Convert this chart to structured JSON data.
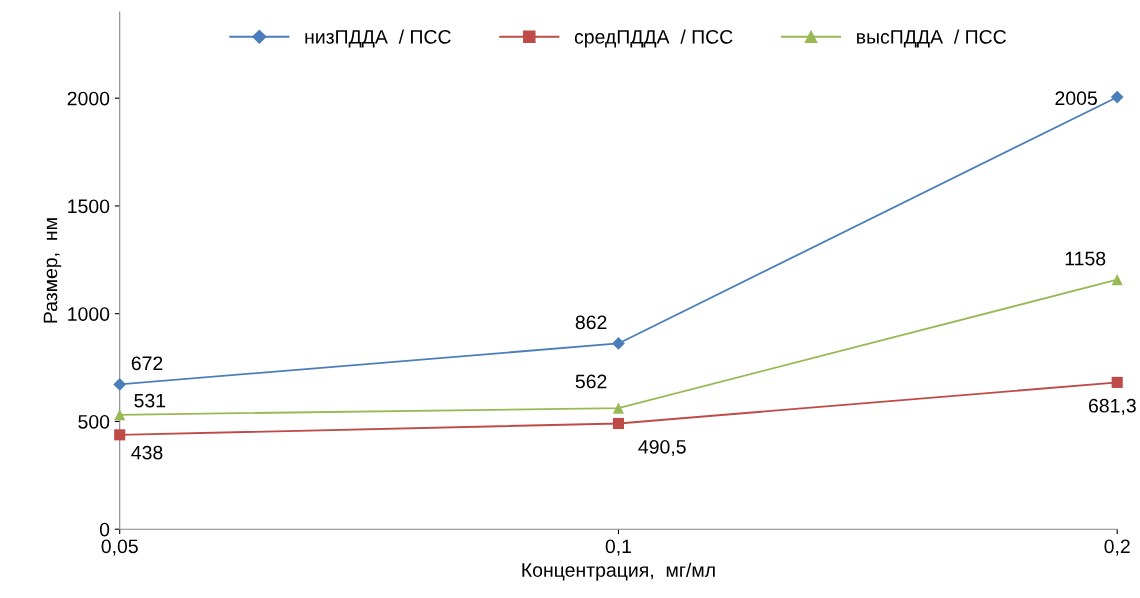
{
  "chart_data": {
    "type": "line",
    "xlabel": "Концентрация,  мг/мл",
    "ylabel": "Размер,  нм",
    "x": [
      0.05,
      0.1,
      0.2
    ],
    "log": "x",
    "series": [
      {
        "name": "низПДДА  / ПСС",
        "color": "#4a7ebb",
        "marker": "diamond",
        "values": [
          672,
          862,
          2005
        ],
        "value_labels": [
          "672",
          "862",
          "2005"
        ]
      },
      {
        "name": "средПДДА  / ПСС",
        "color": "#be4b48",
        "marker": "square",
        "values": [
          438,
          490.5,
          681.3
        ],
        "value_labels": [
          "438",
          "490,5",
          "681,3"
        ]
      },
      {
        "name": "высПДДА  / ПСС",
        "color": "#98b954",
        "marker": "triangle",
        "values": [
          531,
          562,
          1158
        ],
        "value_labels": [
          "531",
          "562",
          "1158"
        ]
      }
    ],
    "xlim": [
      0.05,
      0.2
    ],
    "xticks": [
      {
        "value": 0.05,
        "label": "0,05"
      },
      {
        "value": 0.1,
        "label": "0,1"
      },
      {
        "value": 0.2,
        "label": "0,2"
      }
    ],
    "ylim": [
      0,
      2400
    ],
    "yticks": [
      0,
      500,
      1000,
      1500,
      2000
    ],
    "grid": false,
    "legend": "top"
  }
}
